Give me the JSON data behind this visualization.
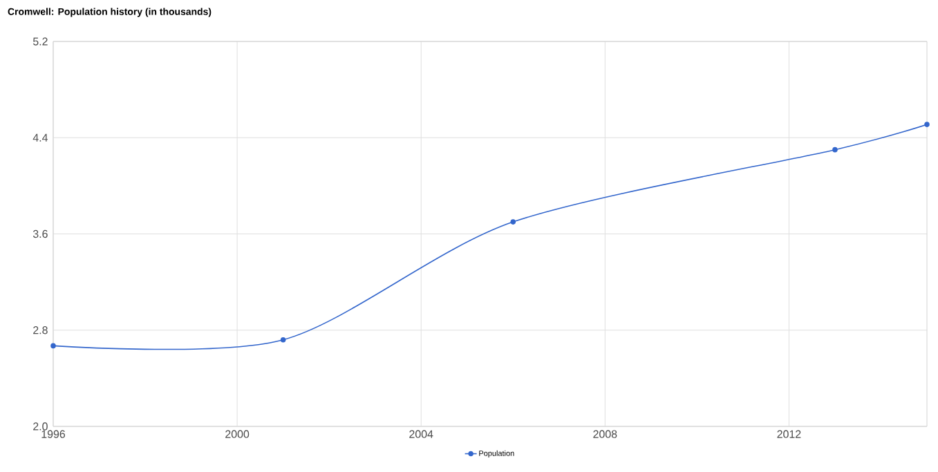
{
  "chart_data": {
    "type": "line",
    "title": "Cromwell: Population history (in thousands)",
    "x": [
      1996,
      2001,
      2006,
      2013,
      2015
    ],
    "series": [
      {
        "name": "Population",
        "color": "#3366cc",
        "values": [
          2.67,
          2.72,
          3.7,
          4.3,
          4.51
        ]
      }
    ],
    "xlim": [
      1996,
      2015
    ],
    "xticks": [
      1996,
      2000,
      2004,
      2008,
      2012
    ],
    "ylim": [
      2.0,
      5.2
    ],
    "yticks": [
      {
        "value": 2.0,
        "label": "2.0"
      },
      {
        "value": 2.8,
        "label": "2.8"
      },
      {
        "value": 3.6,
        "label": "3.6"
      },
      {
        "value": 4.4,
        "label": "4.4"
      },
      {
        "value": 5.2,
        "label": "5.2"
      }
    ],
    "grid": true,
    "legend": "bottom",
    "marker": "circle",
    "line_style": "solid"
  }
}
